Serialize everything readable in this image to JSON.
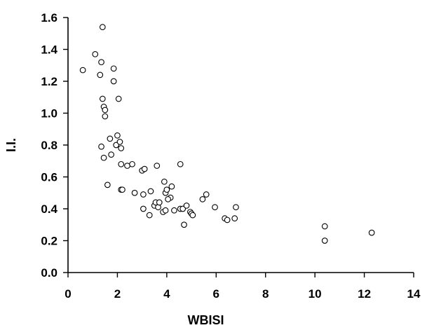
{
  "chart_data": {
    "type": "scatter",
    "title": "",
    "xlabel": "WBISI",
    "ylabel": "I.I.",
    "xlim": [
      0,
      14
    ],
    "ylim": [
      0,
      1.6
    ],
    "x_ticks": [
      0,
      2,
      4,
      6,
      8,
      10,
      12,
      14
    ],
    "y_ticks": [
      0.0,
      0.2,
      0.4,
      0.6,
      0.8,
      1.0,
      1.2,
      1.4,
      1.6
    ],
    "x_tick_labels": [
      "0",
      "2",
      "4",
      "6",
      "8",
      "10",
      "12",
      "14"
    ],
    "y_tick_labels": [
      "0.0",
      "0.2",
      "0.4",
      "0.6",
      "0.8",
      "1.0",
      "1.2",
      "1.4",
      "1.6"
    ],
    "grid": false,
    "legend": "none",
    "marker": "open-circle",
    "series": [
      {
        "x": [
          0.6,
          1.1,
          1.4,
          1.35,
          1.85,
          1.85,
          1.3,
          1.4,
          1.45,
          1.5,
          2.05,
          1.5,
          1.7,
          2.0,
          1.95,
          2.1,
          2.15,
          1.35,
          1.45,
          1.75,
          2.15,
          2.4,
          2.6,
          3.0,
          3.1,
          3.6,
          4.55,
          1.6,
          2.15,
          2.2,
          2.7,
          3.05,
          3.35,
          3.9,
          3.95,
          4.0,
          4.15,
          4.2,
          3.05,
          3.3,
          3.5,
          3.55,
          3.65,
          3.7,
          3.85,
          3.95,
          4.05,
          4.3,
          4.55,
          4.65,
          4.8,
          4.95,
          5.0,
          5.05,
          4.7,
          5.45,
          5.6,
          5.95,
          6.35,
          6.45,
          6.75,
          6.8,
          10.4,
          10.4,
          12.3
        ],
        "y": [
          1.27,
          1.37,
          1.54,
          1.32,
          1.28,
          1.2,
          1.24,
          1.09,
          1.04,
          1.02,
          1.09,
          0.98,
          0.84,
          0.86,
          0.8,
          0.82,
          0.78,
          0.79,
          0.72,
          0.74,
          0.68,
          0.67,
          0.68,
          0.64,
          0.65,
          0.67,
          0.68,
          0.55,
          0.52,
          0.52,
          0.5,
          0.49,
          0.51,
          0.57,
          0.5,
          0.52,
          0.47,
          0.54,
          0.4,
          0.36,
          0.42,
          0.44,
          0.41,
          0.44,
          0.38,
          0.39,
          0.46,
          0.39,
          0.4,
          0.4,
          0.42,
          0.38,
          0.37,
          0.36,
          0.3,
          0.46,
          0.49,
          0.41,
          0.34,
          0.33,
          0.34,
          0.41,
          0.29,
          0.2,
          0.25
        ]
      }
    ]
  }
}
